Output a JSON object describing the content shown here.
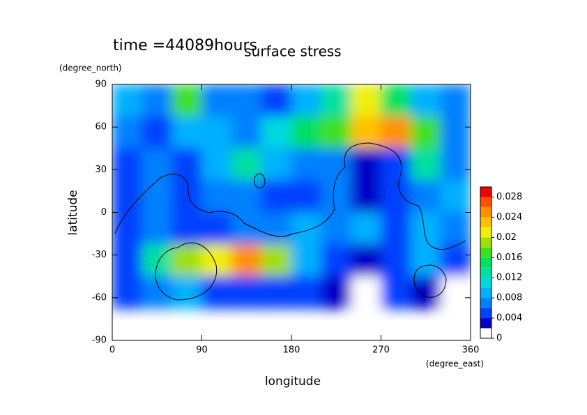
{
  "chart_data": {
    "type": "contour",
    "time_label": "time =44089hours",
    "title": "surface stress",
    "y_unit": "(degree_north)",
    "y_label": "latitude",
    "x_label": "longitude",
    "x_unit": "(degree_east)",
    "xlim": [
      0,
      360
    ],
    "ylim": [
      -90,
      90
    ],
    "xticks": [
      0,
      90,
      180,
      270,
      360
    ],
    "yticks": [
      -90,
      -60,
      -30,
      0,
      30,
      60,
      90
    ],
    "x": [
      15,
      45,
      75,
      105,
      135,
      165,
      195,
      225,
      255,
      285,
      315,
      345
    ],
    "y": [
      78.75,
      56.25,
      33.75,
      11.25,
      -11.25,
      -33.75,
      -56.25
    ],
    "z": [
      [
        0.008,
        0.006,
        0.016,
        0.006,
        0.006,
        0.004,
        0.008,
        0.012,
        0.02,
        0.014,
        0.008,
        0.006
      ],
      [
        0.006,
        0.004,
        0.008,
        0.008,
        0.006,
        0.01,
        0.014,
        0.016,
        0.022,
        0.024,
        0.016,
        0.006
      ],
      [
        0.004,
        0.006,
        0.004,
        0.008,
        0.012,
        0.008,
        0.006,
        0.006,
        0.002,
        0.004,
        0.012,
        0.006
      ],
      [
        0.004,
        0.006,
        0.004,
        0.006,
        0.006,
        0.004,
        0.004,
        0.006,
        0.002,
        0.004,
        0.006,
        0.008
      ],
      [
        0.004,
        0.006,
        0.004,
        0.004,
        0.006,
        0.006,
        0.008,
        0.006,
        0.008,
        0.004,
        0.008,
        0.006
      ],
      [
        0.004,
        0.012,
        0.018,
        0.02,
        0.024,
        0.018,
        0.008,
        0.004,
        0.002,
        0.004,
        0.008,
        0.004
      ],
      [
        0.004,
        0.006,
        0.008,
        0.004,
        0.004,
        0.004,
        0.004,
        0.002,
        0,
        0.004,
        0.002,
        0
      ]
    ],
    "levels": [
      0,
      0.002,
      0.004,
      0.006,
      0.008,
      0.01,
      0.012,
      0.014,
      0.016,
      0.018,
      0.02,
      0.022,
      0.024,
      0.026,
      0.028,
      0.03
    ],
    "colors": [
      "#ffffff",
      "#0000c8",
      "#0040ff",
      "#0080ff",
      "#00b0ff",
      "#00d8e0",
      "#00e0a0",
      "#00e060",
      "#40e020",
      "#a0e000",
      "#f0f000",
      "#ffc000",
      "#ff9000",
      "#ff5000",
      "#f00000"
    ],
    "colorbar_ticks": [
      0,
      0.004,
      0.008,
      0.012,
      0.016,
      0.02,
      0.024,
      0.028
    ]
  }
}
